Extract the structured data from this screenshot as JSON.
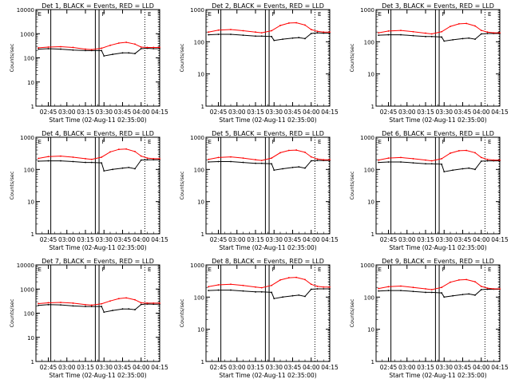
{
  "chart_data": {
    "type": "line",
    "grid": false,
    "ylabel": "Counts/sec",
    "xlabel": "Start Time (02-Aug-11 02:35:00)",
    "x_tick_labels": [
      "02:45",
      "03:00",
      "03:15",
      "03:30",
      "03:45",
      "04:00",
      "04:15"
    ],
    "x_range": [
      "02:35",
      "04:15"
    ],
    "y_scale": "log",
    "flag_labels": [
      "E",
      "F",
      "E"
    ],
    "panels": [
      {
        "title": "Det 1, BLACK = Events, RED = LLD",
        "ylim": [
          1,
          10000
        ],
        "y_tick_labels": [
          "1",
          "10",
          "100",
          "1000",
          "10000"
        ],
        "series": [
          {
            "name": "Events",
            "color": "#000000",
            "x": [
              "02:37",
              "02:45",
              "02:55",
              "03:05",
              "03:15",
              "03:20",
              "03:28",
              "03:30",
              "03:37",
              "03:45",
              "03:50",
              "03:55",
              "04:00",
              "04:05",
              "04:10",
              "04:15"
            ],
            "values": [
              230,
              240,
              230,
              210,
              200,
              200,
              200,
              120,
              140,
              160,
              160,
              150,
              240,
              250,
              240,
              240
            ]
          },
          {
            "name": "LLD",
            "color": "#ff0000",
            "x": [
              "02:37",
              "02:45",
              "02:55",
              "03:05",
              "03:15",
              "03:20",
              "03:28",
              "03:35",
              "03:42",
              "03:48",
              "03:55",
              "04:00",
              "04:05",
              "04:10",
              "04:15"
            ],
            "values": [
              260,
              280,
              290,
              270,
              230,
              220,
              250,
              330,
              410,
              440,
              370,
              280,
              270,
              270,
              270
            ]
          }
        ]
      },
      {
        "title": "Det 2, BLACK = Events, RED = LLD",
        "ylim": [
          1,
          1000
        ],
        "y_tick_labels": [
          "1",
          "10",
          "100",
          "1000"
        ],
        "series": [
          {
            "name": "Events",
            "color": "#000000",
            "x": [
              "02:37",
              "02:45",
              "02:55",
              "03:05",
              "03:15",
              "03:20",
              "03:28",
              "03:30",
              "03:37",
              "03:45",
              "03:50",
              "03:55",
              "04:00",
              "04:05",
              "04:10",
              "04:15"
            ],
            "values": [
              165,
              170,
              170,
              160,
              150,
              150,
              145,
              110,
              120,
              130,
              135,
              125,
              180,
              190,
              185,
              185
            ]
          },
          {
            "name": "LLD",
            "color": "#ff0000",
            "x": [
              "02:37",
              "02:45",
              "02:55",
              "03:05",
              "03:15",
              "03:20",
              "03:28",
              "03:35",
              "03:42",
              "03:48",
              "03:55",
              "04:00",
              "04:05",
              "04:10",
              "04:15"
            ],
            "values": [
              200,
              230,
              240,
              220,
              200,
              190,
              220,
              320,
              380,
              390,
              330,
              240,
              210,
              200,
              200
            ]
          }
        ]
      },
      {
        "title": "Det 3, BLACK = Events, RED = LLD",
        "ylim": [
          1,
          1000
        ],
        "y_tick_labels": [
          "1",
          "10",
          "100",
          "1000"
        ],
        "series": [
          {
            "name": "Events",
            "color": "#000000",
            "x": [
              "02:37",
              "02:45",
              "02:55",
              "03:05",
              "03:15",
              "03:20",
              "03:28",
              "03:30",
              "03:37",
              "03:45",
              "03:50",
              "03:55",
              "04:00",
              "04:05",
              "04:10",
              "04:15"
            ],
            "values": [
              160,
              165,
              165,
              155,
              145,
              145,
              140,
              105,
              115,
              125,
              130,
              120,
              175,
              180,
              180,
              180
            ]
          },
          {
            "name": "LLD",
            "color": "#ff0000",
            "x": [
              "02:37",
              "02:45",
              "02:55",
              "03:05",
              "03:15",
              "03:20",
              "03:28",
              "03:35",
              "03:42",
              "03:48",
              "03:55",
              "04:00",
              "04:05",
              "04:10",
              "04:15"
            ],
            "values": [
              190,
              215,
              225,
              205,
              185,
              175,
              205,
              300,
              360,
              370,
              310,
              225,
              200,
              190,
              190
            ]
          }
        ]
      },
      {
        "title": "Det 4, BLACK = Events, RED = LLD",
        "ylim": [
          1,
          1000
        ],
        "y_tick_labels": [
          "1",
          "10",
          "100",
          "1000"
        ],
        "series": [
          {
            "name": "Events",
            "color": "#000000",
            "x": [
              "02:37",
              "02:45",
              "02:55",
              "03:05",
              "03:15",
              "03:20",
              "03:28",
              "03:30",
              "03:37",
              "03:45",
              "03:50",
              "03:55",
              "04:00",
              "04:05",
              "04:10",
              "04:15"
            ],
            "values": [
              180,
              185,
              185,
              175,
              165,
              165,
              160,
              90,
              100,
              110,
              115,
              105,
              195,
              200,
              200,
              200
            ]
          },
          {
            "name": "LLD",
            "color": "#ff0000",
            "x": [
              "02:37",
              "02:45",
              "02:55",
              "03:05",
              "03:15",
              "03:20",
              "03:28",
              "03:35",
              "03:42",
              "03:48",
              "03:55",
              "04:00",
              "04:05",
              "04:10",
              "04:15"
            ],
            "values": [
              220,
              250,
              260,
              240,
              215,
              205,
              240,
              350,
              420,
              430,
              360,
              260,
              225,
              215,
              215
            ]
          }
        ]
      },
      {
        "title": "Det 5, BLACK = Events, RED = LLD",
        "ylim": [
          1,
          1000
        ],
        "y_tick_labels": [
          "1",
          "10",
          "100",
          "1000"
        ],
        "series": [
          {
            "name": "Events",
            "color": "#000000",
            "x": [
              "02:37",
              "02:45",
              "02:55",
              "03:05",
              "03:15",
              "03:20",
              "03:28",
              "03:30",
              "03:37",
              "03:45",
              "03:50",
              "03:55",
              "04:00",
              "04:05",
              "04:10",
              "04:15"
            ],
            "values": [
              170,
              175,
              175,
              165,
              155,
              155,
              150,
              95,
              105,
              115,
              120,
              110,
              185,
              190,
              190,
              190
            ]
          },
          {
            "name": "LLD",
            "color": "#ff0000",
            "x": [
              "02:37",
              "02:45",
              "02:55",
              "03:05",
              "03:15",
              "03:20",
              "03:28",
              "03:35",
              "03:42",
              "03:48",
              "03:55",
              "04:00",
              "04:05",
              "04:10",
              "04:15"
            ],
            "values": [
              205,
              235,
              245,
              225,
              200,
              190,
              225,
              330,
              390,
              400,
              340,
              245,
              210,
              200,
              200
            ]
          }
        ]
      },
      {
        "title": "Det 6, BLACK = Events, RED = LLD",
        "ylim": [
          1,
          1000
        ],
        "y_tick_labels": [
          "1",
          "10",
          "100",
          "1000"
        ],
        "series": [
          {
            "name": "Events",
            "color": "#000000",
            "x": [
              "02:37",
              "02:45",
              "02:55",
              "03:05",
              "03:15",
              "03:20",
              "03:28",
              "03:30",
              "03:37",
              "03:45",
              "03:50",
              "03:55",
              "04:00",
              "04:05",
              "04:10",
              "04:15"
            ],
            "values": [
              165,
              170,
              170,
              160,
              150,
              150,
              145,
              85,
              95,
              105,
              110,
              100,
              180,
              185,
              185,
              185
            ]
          },
          {
            "name": "LLD",
            "color": "#ff0000",
            "x": [
              "02:37",
              "02:45",
              "02:55",
              "03:05",
              "03:15",
              "03:20",
              "03:28",
              "03:35",
              "03:42",
              "03:48",
              "03:55",
              "04:00",
              "04:05",
              "04:10",
              "04:15"
            ],
            "values": [
              195,
              225,
              235,
              215,
              195,
              185,
              215,
              320,
              380,
              390,
              330,
              235,
              205,
              195,
              195
            ]
          }
        ]
      },
      {
        "title": "Det 7, BLACK = Events, RED = LLD",
        "ylim": [
          1,
          10000
        ],
        "y_tick_labels": [
          "1",
          "10",
          "100",
          "1000",
          "10000"
        ],
        "series": [
          {
            "name": "Events",
            "color": "#000000",
            "x": [
              "02:37",
              "02:45",
              "02:55",
              "03:05",
              "03:15",
              "03:20",
              "03:28",
              "03:30",
              "03:37",
              "03:45",
              "03:50",
              "03:55",
              "04:00",
              "04:05",
              "04:10",
              "04:15"
            ],
            "values": [
              210,
              225,
              220,
              200,
              190,
              190,
              190,
              110,
              130,
              150,
              150,
              140,
              230,
              240,
              235,
              235
            ]
          },
          {
            "name": "LLD",
            "color": "#ff0000",
            "x": [
              "02:37",
              "02:45",
              "02:55",
              "03:05",
              "03:15",
              "03:20",
              "03:28",
              "03:35",
              "03:42",
              "03:48",
              "03:55",
              "04:00",
              "04:05",
              "04:10",
              "04:15"
            ],
            "values": [
              250,
              270,
              280,
              260,
              225,
              215,
              245,
              320,
              400,
              430,
              360,
              270,
              260,
              260,
              260
            ]
          }
        ]
      },
      {
        "title": "Det 8, BLACK = Events, RED = LLD",
        "ylim": [
          1,
          1000
        ],
        "y_tick_labels": [
          "1",
          "10",
          "100",
          "1000"
        ],
        "series": [
          {
            "name": "Events",
            "color": "#000000",
            "x": [
              "02:37",
              "02:45",
              "02:55",
              "03:05",
              "03:15",
              "03:20",
              "03:28",
              "03:30",
              "03:37",
              "03:45",
              "03:50",
              "03:55",
              "04:00",
              "04:05",
              "04:10",
              "04:15"
            ],
            "values": [
              160,
              165,
              165,
              155,
              145,
              145,
              140,
              90,
              100,
              110,
              115,
              105,
              175,
              180,
              180,
              180
            ]
          },
          {
            "name": "LLD",
            "color": "#ff0000",
            "x": [
              "02:37",
              "02:45",
              "02:55",
              "03:05",
              "03:15",
              "03:20",
              "03:28",
              "03:35",
              "03:42",
              "03:48",
              "03:55",
              "04:00",
              "04:05",
              "04:10",
              "04:15"
            ],
            "values": [
              210,
              240,
              250,
              230,
              205,
              195,
              230,
              340,
              400,
              410,
              350,
              250,
              215,
              205,
              205
            ]
          }
        ]
      },
      {
        "title": "Det 9, BLACK = Events, RED = LLD",
        "ylim": [
          1,
          1000
        ],
        "y_tick_labels": [
          "1",
          "10",
          "100",
          "1000"
        ],
        "series": [
          {
            "name": "Events",
            "color": "#000000",
            "x": [
              "02:37",
              "02:45",
              "02:55",
              "03:05",
              "03:15",
              "03:20",
              "03:28",
              "03:30",
              "03:37",
              "03:45",
              "03:50",
              "03:55",
              "04:00",
              "04:05",
              "04:10",
              "04:15"
            ],
            "values": [
              155,
              160,
              160,
              150,
              140,
              140,
              135,
              100,
              110,
              120,
              125,
              115,
              170,
              175,
              175,
              175
            ]
          },
          {
            "name": "LLD",
            "color": "#ff0000",
            "x": [
              "02:37",
              "02:45",
              "02:55",
              "03:05",
              "03:15",
              "03:20",
              "03:28",
              "03:35",
              "03:42",
              "03:48",
              "03:55",
              "04:00",
              "04:05",
              "04:10",
              "04:15"
            ],
            "values": [
              185,
              210,
              220,
              200,
              180,
              170,
              200,
              290,
              340,
              350,
              300,
              215,
              190,
              180,
              180
            ]
          }
        ]
      }
    ]
  }
}
